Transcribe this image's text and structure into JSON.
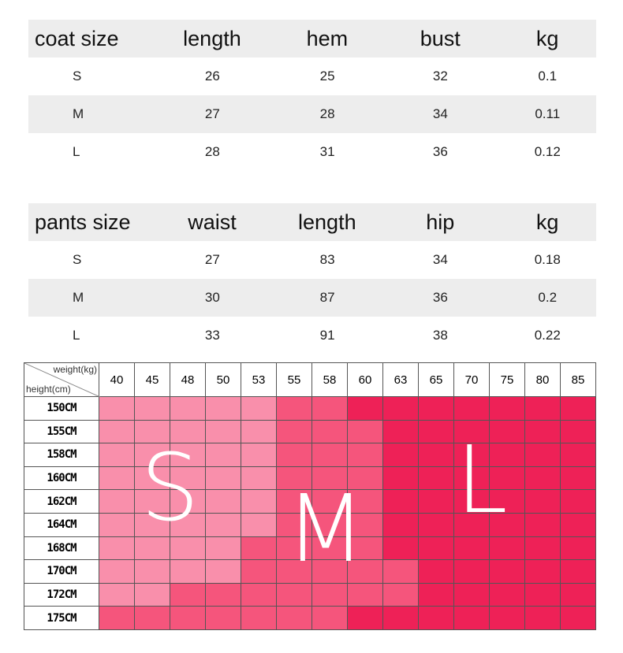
{
  "coat_table": {
    "headers": [
      "coat size",
      "length",
      "hem",
      "bust",
      "kg"
    ],
    "rows": [
      [
        "S",
        "26",
        "25",
        "32",
        "0.1"
      ],
      [
        "M",
        "27",
        "28",
        "34",
        "0.11"
      ],
      [
        "L",
        "28",
        "31",
        "36",
        "0.12"
      ]
    ]
  },
  "pants_table": {
    "headers": [
      "pants size",
      "waist",
      "length",
      "hip",
      "kg"
    ],
    "rows": [
      [
        "S",
        "27",
        "83",
        "34",
        "0.18"
      ],
      [
        "M",
        "30",
        "87",
        "36",
        "0.2"
      ],
      [
        "L",
        "33",
        "91",
        "38",
        "0.22"
      ]
    ]
  },
  "size_grid": {
    "weight_label": "weight(kg)",
    "height_label": "height(cm)",
    "weights": [
      "40",
      "45",
      "48",
      "50",
      "53",
      "55",
      "58",
      "60",
      "63",
      "65",
      "70",
      "75",
      "80",
      "85"
    ],
    "heights": [
      "150CM",
      "155CM",
      "158CM",
      "160CM",
      "162CM",
      "164CM",
      "168CM",
      "170CM",
      "172CM",
      "175CM"
    ],
    "sizes": [
      "SSSSSMMLLLLLLL",
      "SSSSSMMMLLLLLL",
      "SSSSSMMMLLLLLL",
      "SSSSSMMMLLLLLL",
      "SSSSSMMMLLLLLL",
      "SSSSSMMMLLLLLL",
      "SSSSMMMMLLLLLL",
      "SSSSMMMMMLLLLL",
      "SSMMMMMMMLLLLL",
      "MMMMMMMLLLLLLL"
    ],
    "size_letters": {
      "S": "S",
      "M": "M",
      "L": "L"
    },
    "colors": {
      "S": "#f98fab",
      "M": "#f5557c",
      "L": "#ee2157"
    }
  }
}
